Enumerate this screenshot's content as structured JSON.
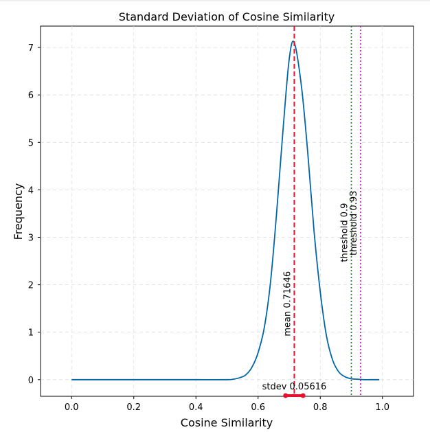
{
  "chart_data": {
    "type": "line",
    "title": "Standard Deviation of Cosine Similarity",
    "xlabel": "Cosine Similarity",
    "ylabel": "Frequency",
    "xlim": [
      -0.1,
      1.1
    ],
    "ylim": [
      -0.35,
      7.45
    ],
    "xticks": [
      "0.0",
      "0.2",
      "0.4",
      "0.6",
      "0.8",
      "1.0"
    ],
    "xtick_values": [
      0.0,
      0.2,
      0.4,
      0.6,
      0.8,
      1.0
    ],
    "yticks": [
      "0",
      "1",
      "2",
      "3",
      "4",
      "5",
      "6",
      "7"
    ],
    "ytick_values": [
      0,
      1,
      2,
      3,
      4,
      5,
      6,
      7
    ],
    "grid": true,
    "series": [
      {
        "color": "#0066a8",
        "style": "solid",
        "x": [
          0.0,
          0.1,
          0.2,
          0.3,
          0.4,
          0.5,
          0.52,
          0.54,
          0.56,
          0.58,
          0.6,
          0.62,
          0.64,
          0.66,
          0.68,
          0.7,
          0.71646,
          0.74,
          0.76,
          0.78,
          0.8,
          0.82,
          0.84,
          0.86,
          0.88,
          0.9,
          0.92,
          0.94,
          0.96,
          0.99
        ],
        "y": [
          0.0,
          0.0,
          0.0,
          0.0,
          0.0,
          0.0,
          0.01,
          0.04,
          0.1,
          0.26,
          0.57,
          1.1,
          2.06,
          3.55,
          5.25,
          6.75,
          7.1,
          6.15,
          4.76,
          3.13,
          1.85,
          0.92,
          0.41,
          0.16,
          0.06,
          0.02,
          0.01,
          0.0,
          0.0,
          0.0
        ]
      }
    ],
    "vlines": [
      {
        "x": 0.71646,
        "color": "#e8102a",
        "style": "dashed",
        "label": "mean 0.71646"
      },
      {
        "x": 0.9,
        "color": "#1a7a1a",
        "style": "dotted",
        "label": "threshold 0.9"
      },
      {
        "x": 0.93,
        "color": "#cc00cc",
        "style": "dotted",
        "label": "threshold 0.93"
      }
    ],
    "stdev_bar": {
      "center": 0.71646,
      "stdev": 0.05616,
      "label": "stdev 0.05616",
      "color": "#e8102a"
    }
  }
}
